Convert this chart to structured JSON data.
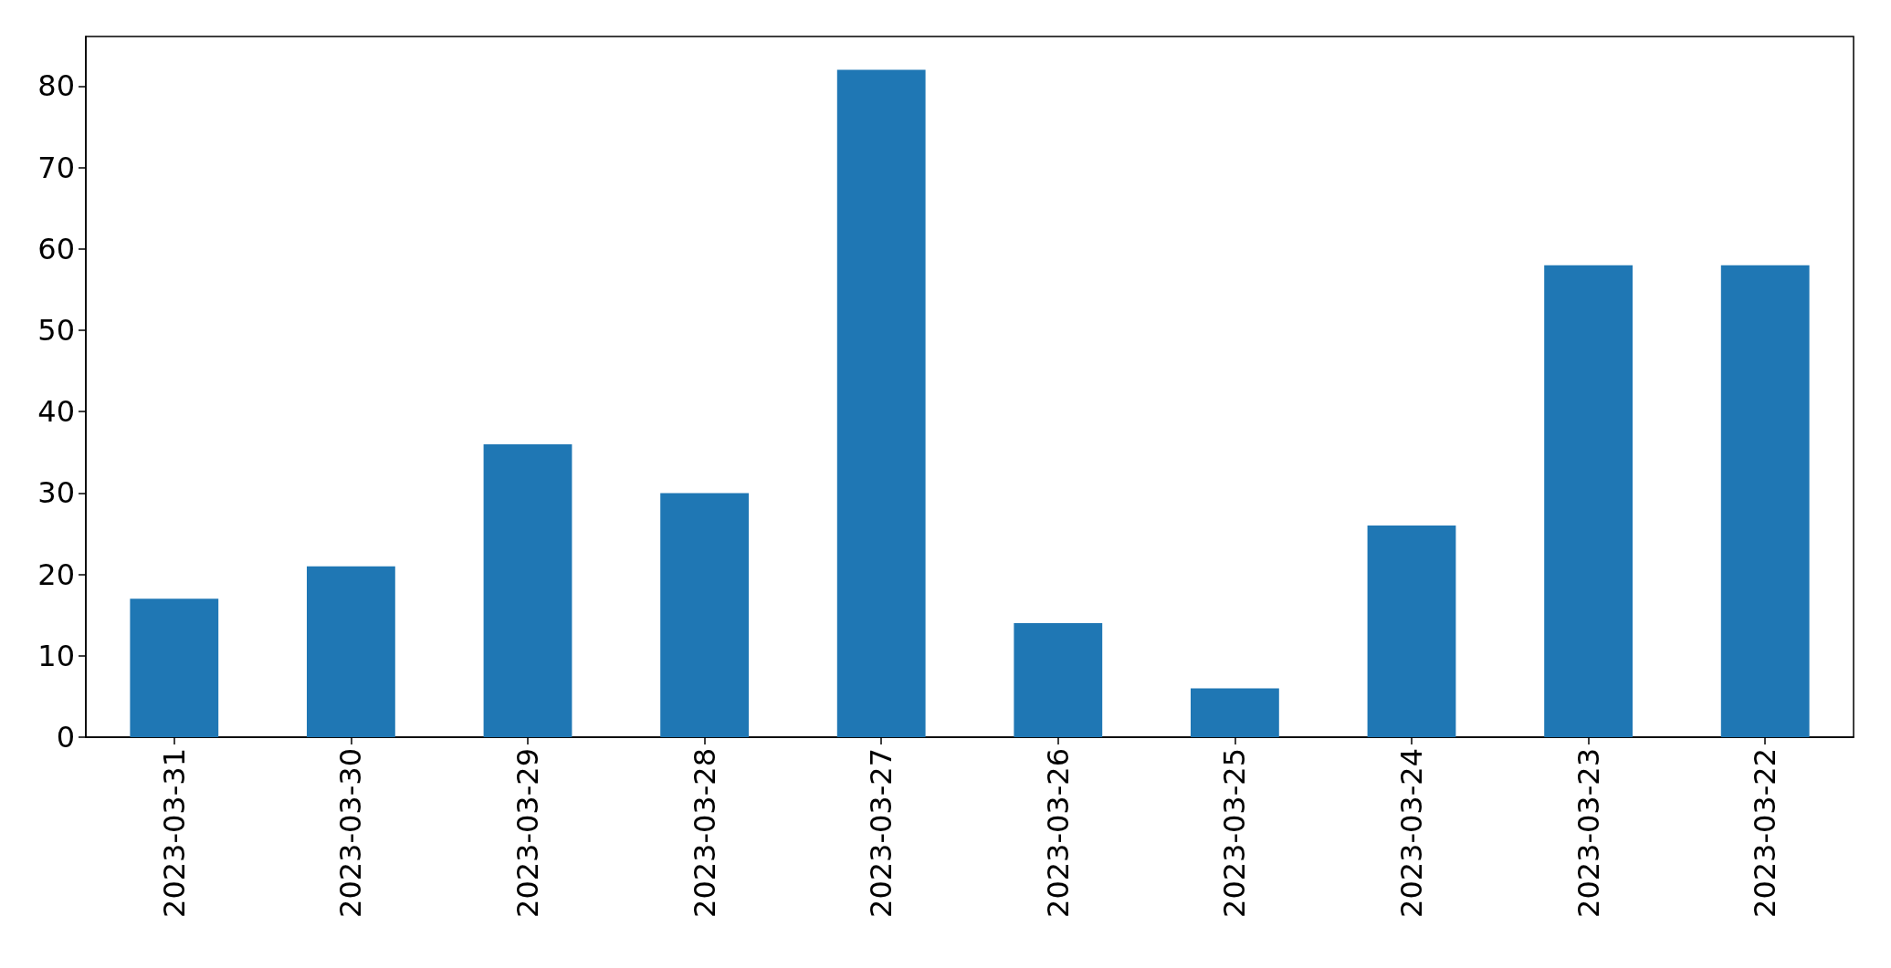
{
  "chart_data": {
    "type": "bar",
    "categories": [
      "2023-03-31",
      "2023-03-30",
      "2023-03-29",
      "2023-03-28",
      "2023-03-27",
      "2023-03-26",
      "2023-03-25",
      "2023-03-24",
      "2023-03-23",
      "2023-03-22"
    ],
    "values": [
      17,
      21,
      36,
      30,
      82,
      14,
      6,
      26,
      58,
      58
    ],
    "color": "#1f77b4",
    "ylim": [
      0,
      86.1
    ],
    "yticks": [
      0,
      10,
      20,
      30,
      40,
      50,
      60,
      70,
      80
    ],
    "grid": false
  }
}
